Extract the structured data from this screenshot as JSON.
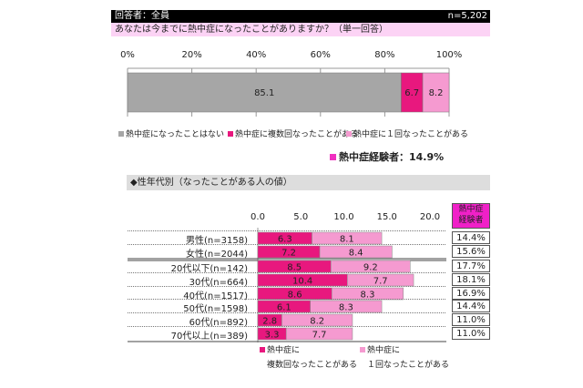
{
  "header": {
    "respondents": "回答者：全員",
    "n": "n=5,202"
  },
  "question": "あなたは今までに熱中症になったことがありますか？（単一回答）",
  "colors": {
    "never": "#a6a6a6",
    "multiple": "#e8187e",
    "once": "#f59ad0",
    "experience_marker": "#f030c0",
    "table_header": "#f020c8"
  },
  "chart_data": [
    {
      "type": "bar",
      "orientation": "horizontal",
      "stacked": true,
      "xlim": [
        0,
        100
      ],
      "tick_labels": [
        "0%",
        "20%",
        "40%",
        "60%",
        "80%",
        "100%"
      ],
      "series": [
        {
          "name": "熱中症になったことはない",
          "values": [
            85.1
          ]
        },
        {
          "name": "熱中症に複数回なったことがある",
          "values": [
            6.7
          ]
        },
        {
          "name": "熱中症に１回なったことがある",
          "values": [
            8.2
          ]
        }
      ],
      "annotation": "熱中症経験者：14.9%"
    },
    {
      "type": "bar",
      "orientation": "horizontal",
      "stacked": true,
      "title": "◆性年代別（なったことがある人の値）",
      "xlim": [
        0,
        20
      ],
      "tick_labels": [
        "0.0",
        "5.0",
        "10.0",
        "15.0",
        "20.0"
      ],
      "categories": [
        "男性(n=3158)",
        "女性(n=2044)",
        "20代以下(n=142)",
        "30代(n=664)",
        "40代(n=1517)",
        "50代(n=1598)",
        "60代(n=892)",
        "70代以上(n=389)"
      ],
      "series": [
        {
          "name": "熱中症に複数回なったことがある",
          "legend": [
            "熱中症に",
            "複数回なったことがある"
          ],
          "values": [
            6.3,
            7.2,
            8.5,
            10.4,
            8.6,
            6.1,
            2.8,
            3.3
          ]
        },
        {
          "name": "熱中症に１回なったことがある",
          "legend": [
            "熱中症に",
            "１回なったことがある"
          ],
          "values": [
            8.1,
            8.4,
            9.2,
            7.7,
            8.3,
            8.3,
            8.2,
            7.7
          ]
        }
      ],
      "table": {
        "header": [
          "熱中症",
          "経験者"
        ],
        "values": [
          "14.4%",
          "15.6%",
          "17.7%",
          "18.1%",
          "16.9%",
          "14.4%",
          "11.0%",
          "11.0%"
        ]
      }
    }
  ]
}
